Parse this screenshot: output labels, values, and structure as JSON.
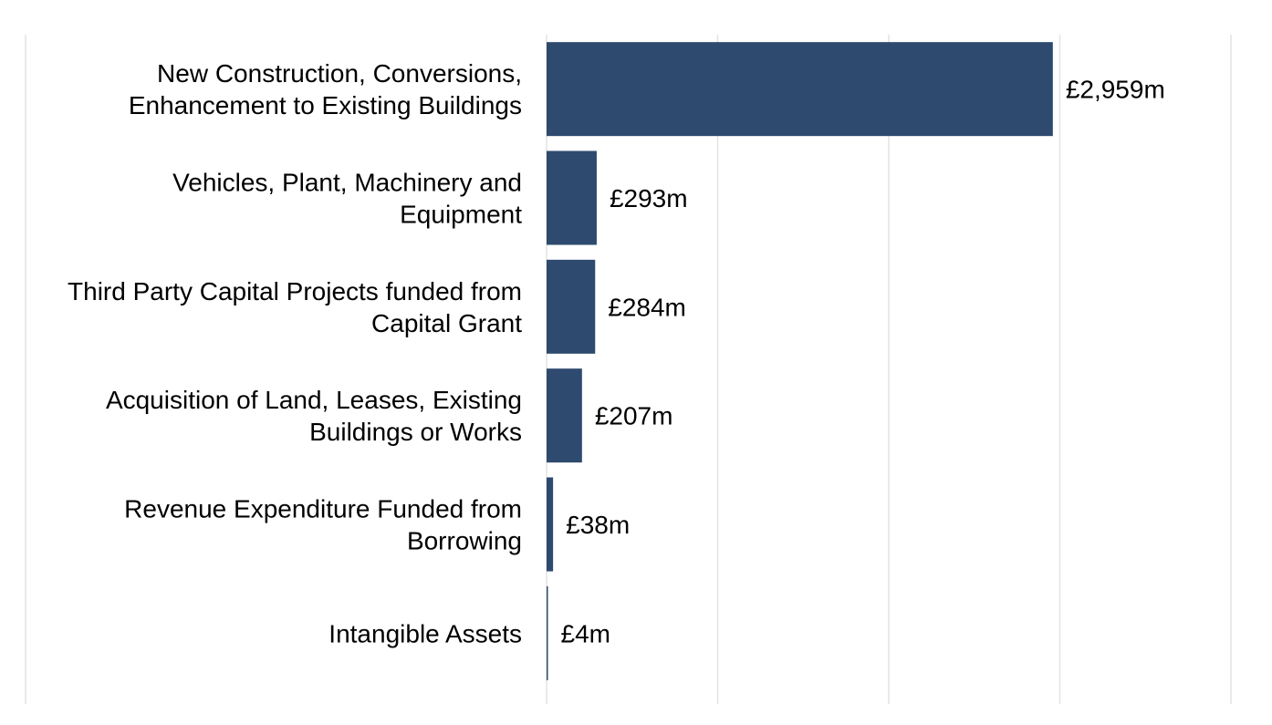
{
  "chart_data": {
    "type": "bar",
    "orientation": "horizontal",
    "categories": [
      [
        "New Construction, Conversions,",
        "Enhancement to Existing Buildings"
      ],
      [
        "Vehicles, Plant, Machinery and",
        "Equipment"
      ],
      [
        "Third Party Capital Projects funded from",
        "Capital Grant"
      ],
      [
        "Acquisition of Land, Leases, Existing",
        "Buildings or Works"
      ],
      [
        "Revenue Expenditure Funded from",
        "Borrowing"
      ],
      [
        "Intangible Assets"
      ]
    ],
    "values": [
      2959,
      293,
      284,
      207,
      38,
      4
    ],
    "data_labels": [
      "£2,959m",
      "£293m",
      "£284m",
      "£207m",
      "£38m",
      "£4m"
    ],
    "unit": "£m",
    "xlim": [
      0,
      4000
    ],
    "gridlines": [
      0,
      1000,
      2000,
      3000,
      4000
    ],
    "grid": true,
    "legend": "none",
    "bar_color": "#2e4a6e",
    "grid_color": "#e3e3e3",
    "title": "",
    "xlabel": "",
    "ylabel": ""
  }
}
